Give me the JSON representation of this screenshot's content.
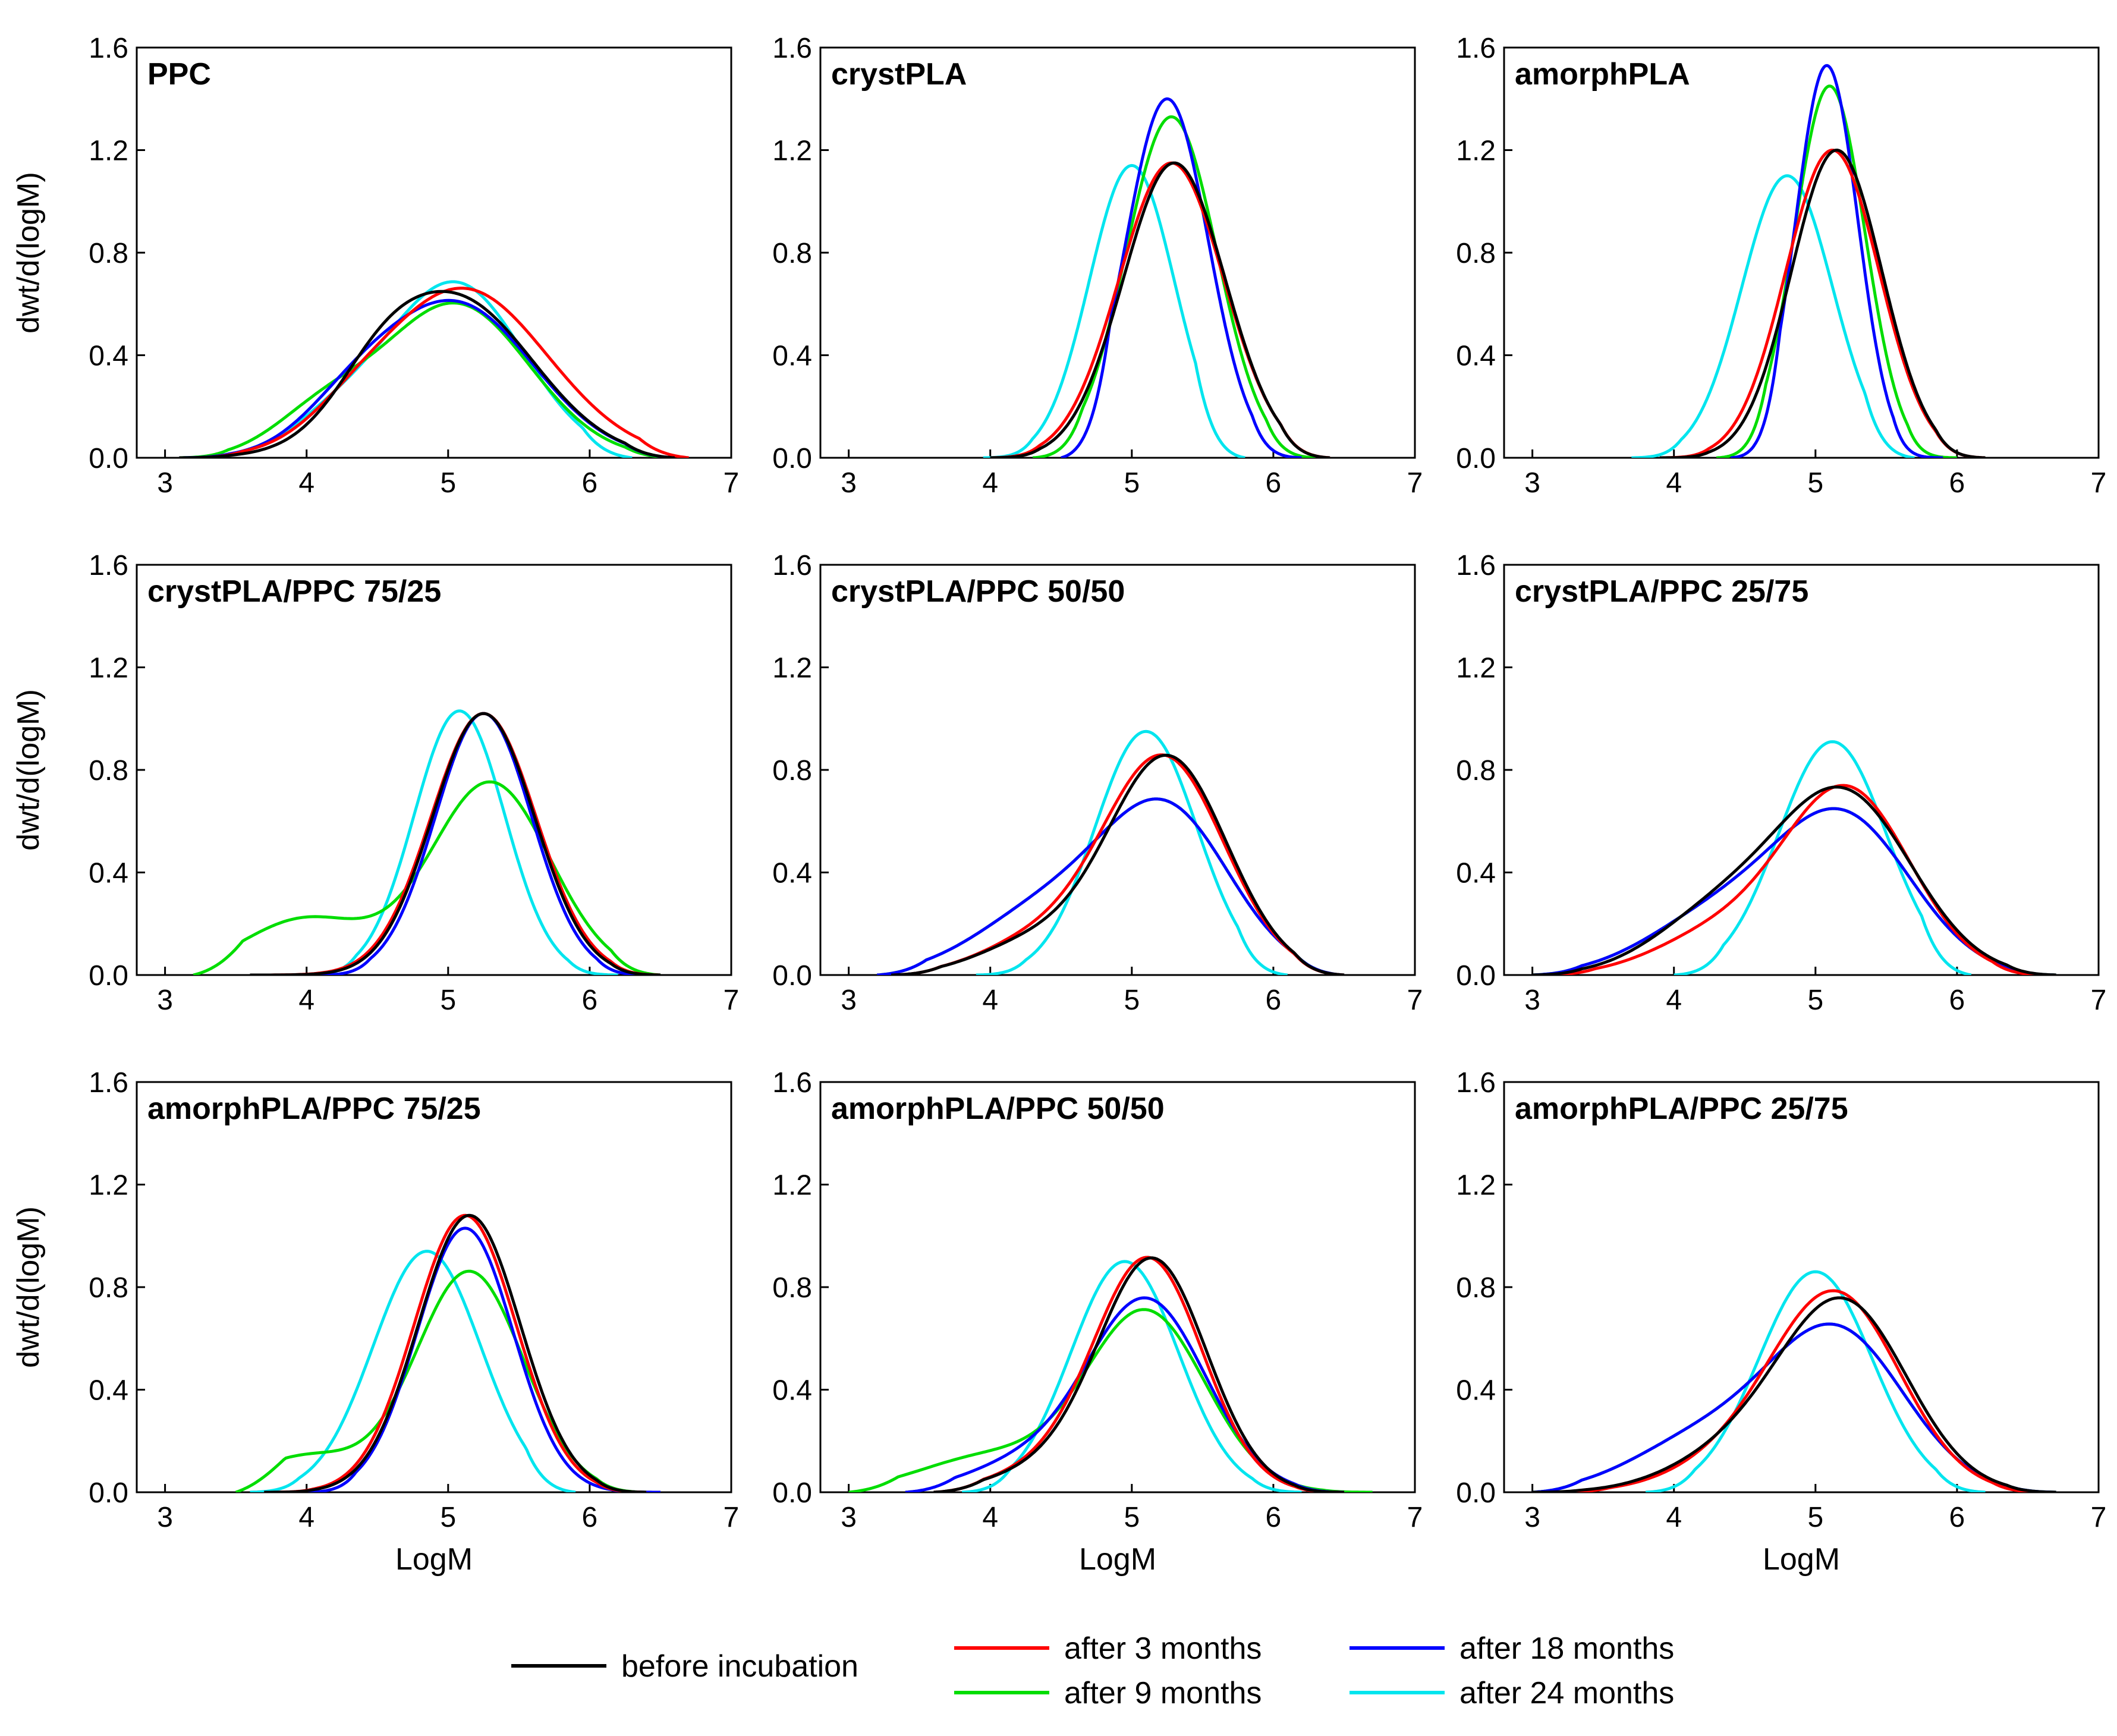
{
  "colors": {
    "before_incubation": "#000000",
    "after_3_months": "#ff0000",
    "after_9_months": "#00dd00",
    "after_18_months": "#0000ff",
    "after_24_months": "#00e5ee"
  },
  "legend": [
    {
      "key": "before_incubation",
      "label": "before incubation"
    },
    {
      "key": "after_3_months",
      "label": "after 3 months"
    },
    {
      "key": "after_9_months",
      "label": "after 9 months"
    },
    {
      "key": "after_18_months",
      "label": "after 18 months"
    },
    {
      "key": "after_24_months",
      "label": "after 24 months"
    }
  ],
  "chart_data": [
    {
      "type": "line",
      "title": "PPC",
      "xlabel": "",
      "ylabel": "dwt/d(logM)",
      "xlim": [
        2.8,
        7
      ],
      "ylim": [
        0,
        1.6
      ],
      "xticks": [
        "3",
        "4",
        "5",
        "6",
        "7"
      ],
      "yticks": [
        "0.0",
        "0.4",
        "0.8",
        "1.2",
        "1.6"
      ],
      "grid": false,
      "series": [
        {
          "name": "before incubation",
          "key": "before_incubation",
          "components": [
            [
              0.62,
              5.05,
              0.55
            ],
            [
              0.12,
              4.5,
              0.3
            ]
          ],
          "range": [
            3.1,
            6.6
          ]
        },
        {
          "name": "after 3 months",
          "key": "after_3_months",
          "components": [
            [
              0.66,
              5.1,
              0.6
            ],
            [
              0.05,
              4.3,
              0.3
            ]
          ],
          "range": [
            3.2,
            6.7
          ]
        },
        {
          "name": "after 9 months",
          "key": "after_9_months",
          "components": [
            [
              0.6,
              5.05,
              0.52
            ],
            [
              0.15,
              4.1,
              0.35
            ]
          ],
          "range": [
            3.1,
            6.6
          ]
        },
        {
          "name": "after 18 months",
          "key": "after_18_months",
          "components": [
            [
              0.6,
              5.05,
              0.55
            ],
            [
              0.12,
              4.3,
              0.35
            ]
          ],
          "range": [
            3.1,
            6.6
          ]
        },
        {
          "name": "after 24 months",
          "key": "after_24_months",
          "components": [
            [
              0.68,
              5.05,
              0.48
            ],
            [
              0.12,
              4.2,
              0.35
            ]
          ],
          "range": [
            3.2,
            6.3
          ]
        }
      ]
    },
    {
      "type": "line",
      "title": "crystPLA",
      "xlabel": "",
      "ylabel": "",
      "xlim": [
        2.8,
        7
      ],
      "ylim": [
        0,
        1.6
      ],
      "xticks": [
        "3",
        "4",
        "5",
        "6",
        "7"
      ],
      "yticks": [
        "0.0",
        "0.4",
        "0.8",
        "1.2",
        "1.6"
      ],
      "grid": false,
      "series": [
        {
          "name": "before incubation",
          "key": "before_incubation",
          "components": [
            [
              1.15,
              5.3,
              0.36
            ]
          ],
          "range": [
            4.0,
            6.4
          ]
        },
        {
          "name": "after 3 months",
          "key": "after_3_months",
          "components": [
            [
              1.15,
              5.28,
              0.37
            ]
          ],
          "range": [
            4.0,
            6.4
          ]
        },
        {
          "name": "after 9 months",
          "key": "after_9_months",
          "components": [
            [
              1.33,
              5.28,
              0.32
            ]
          ],
          "range": [
            4.3,
            6.3
          ]
        },
        {
          "name": "after 18 months",
          "key": "after_18_months",
          "components": [
            [
              1.4,
              5.25,
              0.29
            ]
          ],
          "range": [
            4.5,
            6.2
          ]
        },
        {
          "name": "after 24 months",
          "key": "after_24_months",
          "components": [
            [
              1.14,
              5.0,
              0.3
            ]
          ],
          "range": [
            3.95,
            5.8
          ]
        }
      ]
    },
    {
      "type": "line",
      "title": "amorphPLA",
      "xlabel": "",
      "ylabel": "",
      "xlim": [
        2.8,
        7
      ],
      "ylim": [
        0,
        1.6
      ],
      "xticks": [
        "3",
        "4",
        "5",
        "6",
        "7"
      ],
      "yticks": [
        "0.0",
        "0.4",
        "0.8",
        "1.2",
        "1.6"
      ],
      "grid": false,
      "series": [
        {
          "name": "before incubation",
          "key": "before_incubation",
          "components": [
            [
              1.2,
              5.15,
              0.32
            ]
          ],
          "range": [
            3.9,
            6.2
          ]
        },
        {
          "name": "after 3 months",
          "key": "after_3_months",
          "components": [
            [
              1.2,
              5.12,
              0.33
            ]
          ],
          "range": [
            3.9,
            6.2
          ]
        },
        {
          "name": "after 9 months",
          "key": "after_9_months",
          "components": [
            [
              1.45,
              5.1,
              0.25
            ]
          ],
          "range": [
            4.3,
            6.0
          ]
        },
        {
          "name": "after 18 months",
          "key": "after_18_months",
          "components": [
            [
              1.53,
              5.08,
              0.22
            ]
          ],
          "range": [
            4.4,
            5.9
          ]
        },
        {
          "name": "after 24 months",
          "key": "after_24_months",
          "components": [
            [
              1.1,
              4.8,
              0.32
            ]
          ],
          "range": [
            3.7,
            5.7
          ]
        }
      ]
    },
    {
      "type": "line",
      "title": "crystPLA/PPC 75/25",
      "xlabel": "",
      "ylabel": "dwt/d(logM)",
      "xlim": [
        2.8,
        7
      ],
      "ylim": [
        0,
        1.6
      ],
      "xticks": [
        "3",
        "4",
        "5",
        "6",
        "7"
      ],
      "yticks": [
        "0.0",
        "0.4",
        "0.8",
        "1.2",
        "1.6"
      ],
      "grid": false,
      "series": [
        {
          "name": "before incubation",
          "key": "before_incubation",
          "components": [
            [
              1.02,
              5.25,
              0.36
            ]
          ],
          "range": [
            3.6,
            6.5
          ]
        },
        {
          "name": "after 3 months",
          "key": "after_3_months",
          "components": [
            [
              1.02,
              5.25,
              0.37
            ]
          ],
          "range": [
            3.6,
            6.5
          ]
        },
        {
          "name": "after 9 months",
          "key": "after_9_months",
          "components": [
            [
              0.75,
              5.3,
              0.42
            ],
            [
              0.22,
              4.0,
              0.45
            ]
          ],
          "range": [
            3.2,
            6.5
          ]
        },
        {
          "name": "after 18 months",
          "key": "after_18_months",
          "components": [
            [
              1.02,
              5.25,
              0.34
            ]
          ],
          "range": [
            4.1,
            6.4
          ]
        },
        {
          "name": "after 24 months",
          "key": "after_24_months",
          "components": [
            [
              1.03,
              5.08,
              0.32
            ]
          ],
          "range": [
            4.0,
            6.2
          ]
        }
      ]
    },
    {
      "type": "line",
      "title": "crystPLA/PPC 50/50",
      "xlabel": "",
      "ylabel": "",
      "xlim": [
        2.8,
        7
      ],
      "ylim": [
        0,
        1.6
      ],
      "xticks": [
        "3",
        "4",
        "5",
        "6",
        "7"
      ],
      "yticks": [
        "0.0",
        "0.4",
        "0.8",
        "1.2",
        "1.6"
      ],
      "grid": false,
      "series": [
        {
          "name": "before incubation",
          "key": "before_incubation",
          "components": [
            [
              0.85,
              5.25,
              0.42
            ],
            [
              0.12,
              4.3,
              0.4
            ]
          ],
          "range": [
            3.3,
            6.5
          ]
        },
        {
          "name": "after 3 months",
          "key": "after_3_months",
          "components": [
            [
              0.85,
              5.22,
              0.43
            ],
            [
              0.12,
              4.3,
              0.4
            ]
          ],
          "range": [
            3.3,
            6.5
          ]
        },
        {
          "name": "after 9 months",
          "key": "after_9_months",
          "components": [
            [
              0.62,
              5.25,
              0.45
            ],
            [
              0.25,
              4.4,
              0.5
            ]
          ],
          "range": [
            3.2,
            6.5
          ]
        },
        {
          "name": "after 18 months",
          "key": "after_18_months",
          "components": [
            [
              0.62,
              5.25,
              0.45
            ],
            [
              0.25,
              4.4,
              0.5
            ]
          ],
          "range": [
            3.2,
            6.5
          ]
        },
        {
          "name": "after 24 months",
          "key": "after_24_months",
          "components": [
            [
              0.95,
              5.1,
              0.36
            ]
          ],
          "range": [
            3.9,
            6.1
          ]
        }
      ]
    },
    {
      "type": "line",
      "title": "crystPLA/PPC 25/75",
      "xlabel": "",
      "ylabel": "",
      "xlim": [
        2.8,
        7
      ],
      "ylim": [
        0,
        1.6
      ],
      "xticks": [
        "3",
        "4",
        "5",
        "6",
        "7"
      ],
      "yticks": [
        "0.0",
        "0.4",
        "0.8",
        "1.2",
        "1.6"
      ],
      "grid": false,
      "series": [
        {
          "name": "before incubation",
          "key": "before_incubation",
          "components": [
            [
              0.7,
              5.2,
              0.48
            ],
            [
              0.22,
              4.3,
              0.45
            ]
          ],
          "range": [
            3.0,
            6.7
          ]
        },
        {
          "name": "after 3 months",
          "key": "after_3_months",
          "components": [
            [
              0.72,
              5.22,
              0.45
            ],
            [
              0.15,
              4.3,
              0.45
            ]
          ],
          "range": [
            3.1,
            6.6
          ]
        },
        {
          "name": "after 9 months",
          "key": "after_9_months",
          "components": [
            [
              0.6,
              5.2,
              0.48
            ],
            [
              0.22,
              4.3,
              0.5
            ]
          ],
          "range": [
            3.0,
            6.7
          ]
        },
        {
          "name": "after 18 months",
          "key": "after_18_months",
          "components": [
            [
              0.6,
              5.2,
              0.48
            ],
            [
              0.22,
              4.3,
              0.5
            ]
          ],
          "range": [
            3.0,
            6.7
          ]
        },
        {
          "name": "after 24 months",
          "key": "after_24_months",
          "components": [
            [
              0.91,
              5.12,
              0.38
            ]
          ],
          "range": [
            4.0,
            6.1
          ]
        }
      ]
    },
    {
      "type": "line",
      "title": "amorphPLA/PPC 75/25",
      "xlabel": "LogM",
      "ylabel": "dwt/d(logM)",
      "xlim": [
        2.8,
        7
      ],
      "ylim": [
        0,
        1.6
      ],
      "xticks": [
        "3",
        "4",
        "5",
        "6",
        "7"
      ],
      "yticks": [
        "0.0",
        "0.4",
        "0.8",
        "1.2",
        "1.6"
      ],
      "grid": false,
      "series": [
        {
          "name": "before incubation",
          "key": "before_incubation",
          "components": [
            [
              1.08,
              5.15,
              0.36
            ]
          ],
          "range": [
            3.7,
            6.4
          ]
        },
        {
          "name": "after 3 months",
          "key": "after_3_months",
          "components": [
            [
              1.08,
              5.12,
              0.36
            ]
          ],
          "range": [
            3.7,
            6.4
          ]
        },
        {
          "name": "after 9 months",
          "key": "after_9_months",
          "components": [
            [
              0.86,
              5.15,
              0.38
            ],
            [
              0.14,
              4.0,
              0.4
            ]
          ],
          "range": [
            3.5,
            6.4
          ]
        },
        {
          "name": "after 18 months",
          "key": "after_18_months",
          "components": [
            [
              1.03,
              5.12,
              0.34
            ]
          ],
          "range": [
            4.0,
            6.5
          ]
        },
        {
          "name": "after 24 months",
          "key": "after_24_months",
          "components": [
            [
              0.94,
              4.85,
              0.38
            ]
          ],
          "range": [
            3.6,
            5.9
          ]
        }
      ]
    },
    {
      "type": "line",
      "title": "amorphPLA/PPC 50/50",
      "xlabel": "LogM",
      "ylabel": "",
      "xlim": [
        2.8,
        7
      ],
      "ylim": [
        0,
        1.6
      ],
      "xticks": [
        "3",
        "4",
        "5",
        "6",
        "7"
      ],
      "yticks": [
        "0.0",
        "0.4",
        "0.8",
        "1.2",
        "1.6"
      ],
      "grid": false,
      "series": [
        {
          "name": "before incubation",
          "key": "before_incubation",
          "components": [
            [
              0.9,
              5.15,
              0.38
            ],
            [
              0.08,
              4.4,
              0.4
            ]
          ],
          "range": [
            3.6,
            6.5
          ]
        },
        {
          "name": "after 3 months",
          "key": "after_3_months",
          "components": [
            [
              0.9,
              5.12,
              0.38
            ],
            [
              0.08,
              4.4,
              0.4
            ]
          ],
          "range": [
            3.6,
            6.5
          ]
        },
        {
          "name": "after 9 months",
          "key": "after_9_months",
          "components": [
            [
              0.7,
              5.1,
              0.42
            ],
            [
              0.14,
              4.0,
              0.5
            ]
          ],
          "range": [
            3.0,
            6.7
          ]
        },
        {
          "name": "after 18 months",
          "key": "after_18_months",
          "components": [
            [
              0.75,
              5.1,
              0.42
            ],
            [
              0.1,
              4.2,
              0.4
            ]
          ],
          "range": [
            3.4,
            6.5
          ]
        },
        {
          "name": "after 24 months",
          "key": "after_24_months",
          "components": [
            [
              0.9,
              4.95,
              0.38
            ]
          ],
          "range": [
            3.8,
            6.2
          ]
        }
      ]
    },
    {
      "type": "line",
      "title": "amorphPLA/PPC 25/75",
      "xlabel": "LogM",
      "ylabel": "",
      "xlim": [
        2.8,
        7
      ],
      "ylim": [
        0,
        1.6
      ],
      "xticks": [
        "3",
        "4",
        "5",
        "6",
        "7"
      ],
      "yticks": [
        "0.0",
        "0.4",
        "0.8",
        "1.2",
        "1.6"
      ],
      "grid": false,
      "series": [
        {
          "name": "before incubation",
          "key": "before_incubation",
          "components": [
            [
              0.73,
              5.2,
              0.45
            ],
            [
              0.13,
              4.4,
              0.45
            ]
          ],
          "range": [
            3.0,
            6.7
          ]
        },
        {
          "name": "after 3 months",
          "key": "after_3_months",
          "components": [
            [
              0.76,
              5.15,
              0.45
            ],
            [
              0.1,
              4.4,
              0.45
            ]
          ],
          "range": [
            3.2,
            6.6
          ]
        },
        {
          "name": "after 9 months",
          "key": "after_9_months",
          "components": [
            [
              0.62,
              5.15,
              0.48
            ],
            [
              0.2,
              4.2,
              0.5
            ]
          ],
          "range": [
            3.0,
            6.7
          ]
        },
        {
          "name": "after 18 months",
          "key": "after_18_months",
          "components": [
            [
              0.62,
              5.15,
              0.48
            ],
            [
              0.2,
              4.2,
              0.5
            ]
          ],
          "range": [
            3.0,
            6.7
          ]
        },
        {
          "name": "after 24 months",
          "key": "after_24_months",
          "components": [
            [
              0.86,
              5.0,
              0.4
            ]
          ],
          "range": [
            3.8,
            6.2
          ]
        }
      ]
    }
  ]
}
